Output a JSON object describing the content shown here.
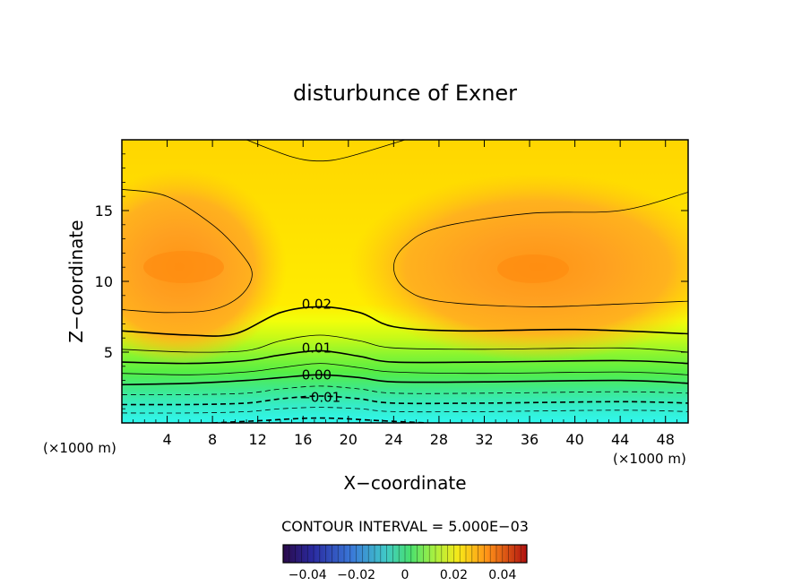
{
  "chart_data": {
    "type": "contour",
    "title": "disturbunce of Exner",
    "xlabel": "X−coordinate",
    "ylabel": "Z−coordinate",
    "x_unit_left": "(×1000 m)",
    "x_unit_right": "(×1000 m)",
    "xlim": [
      0,
      50
    ],
    "ylim": [
      0,
      20
    ],
    "x_ticks": [
      4,
      8,
      12,
      16,
      20,
      24,
      28,
      32,
      36,
      40,
      44,
      48
    ],
    "y_ticks": [
      5,
      10,
      15
    ],
    "contour_interval_text": "CONTOUR INTERVAL = 5.000E−03",
    "contour_interval": 0.005,
    "contour_labels": [
      {
        "text": "0.02",
        "x": 17.2,
        "z": 8.4
      },
      {
        "text": "0.01",
        "x": 17.2,
        "z": 5.3
      },
      {
        "text": "0.00",
        "x": 17.2,
        "z": 3.4
      },
      {
        "text": "−0.01",
        "x": 17.5,
        "z": 1.8
      }
    ],
    "contour_lines": [
      {
        "level": 0.025,
        "points": [
          [
            0,
            16.5
          ],
          [
            4,
            16
          ],
          [
            8,
            14
          ],
          [
            10.5,
            12
          ],
          [
            11.5,
            10.5
          ],
          [
            10.5,
            9
          ],
          [
            8,
            8
          ],
          [
            4,
            7.8
          ],
          [
            0,
            8
          ]
        ]
      },
      {
        "level": 0.025,
        "points": [
          [
            50,
            16.3
          ],
          [
            44,
            15
          ],
          [
            36,
            14.8
          ],
          [
            28,
            13.8
          ],
          [
            25,
            12.5
          ],
          [
            24,
            11
          ],
          [
            25,
            9.5
          ],
          [
            28,
            8.6
          ],
          [
            36,
            8.2
          ],
          [
            44,
            8.4
          ],
          [
            50,
            8.6
          ]
        ]
      },
      {
        "level": 0.025,
        "points": [
          [
            11,
            20
          ],
          [
            15,
            18.8
          ],
          [
            17.5,
            18.5
          ],
          [
            20,
            18.8
          ],
          [
            25,
            20
          ]
        ]
      },
      {
        "level": 0.02,
        "points": [
          [
            0,
            6.5
          ],
          [
            6,
            6.2
          ],
          [
            10,
            6.3
          ],
          [
            14,
            7.8
          ],
          [
            17.5,
            8.2
          ],
          [
            21,
            7.8
          ],
          [
            24,
            6.8
          ],
          [
            30,
            6.5
          ],
          [
            40,
            6.6
          ],
          [
            50,
            6.3
          ]
        ]
      },
      {
        "level": 0.015,
        "points": [
          [
            0,
            5.2
          ],
          [
            6,
            5.0
          ],
          [
            11,
            5.1
          ],
          [
            14,
            5.8
          ],
          [
            17.5,
            6.2
          ],
          [
            21,
            5.8
          ],
          [
            24,
            5.3
          ],
          [
            32,
            5.2
          ],
          [
            44,
            5.3
          ],
          [
            50,
            5.0
          ]
        ]
      },
      {
        "level": 0.01,
        "points": [
          [
            0,
            4.3
          ],
          [
            6,
            4.2
          ],
          [
            11,
            4.4
          ],
          [
            14,
            4.8
          ],
          [
            17.5,
            5.1
          ],
          [
            21,
            4.7
          ],
          [
            24,
            4.3
          ],
          [
            32,
            4.3
          ],
          [
            44,
            4.4
          ],
          [
            50,
            4.2
          ]
        ]
      },
      {
        "level": 0.005,
        "points": [
          [
            0,
            3.5
          ],
          [
            6,
            3.4
          ],
          [
            11,
            3.6
          ],
          [
            14,
            3.9
          ],
          [
            17.5,
            4.2
          ],
          [
            21,
            3.9
          ],
          [
            24,
            3.6
          ],
          [
            32,
            3.5
          ],
          [
            44,
            3.6
          ],
          [
            50,
            3.4
          ]
        ]
      },
      {
        "level": 0.0,
        "points": [
          [
            0,
            2.7
          ],
          [
            6,
            2.8
          ],
          [
            11,
            3.0
          ],
          [
            14,
            3.2
          ],
          [
            17.5,
            3.4
          ],
          [
            21,
            3.2
          ],
          [
            24,
            2.9
          ],
          [
            32,
            2.9
          ],
          [
            44,
            3.0
          ],
          [
            50,
            2.8
          ]
        ]
      },
      {
        "level": -0.005,
        "points": [
          [
            0,
            2.0
          ],
          [
            6,
            2.0
          ],
          [
            11,
            2.1
          ],
          [
            14,
            2.4
          ],
          [
            17.5,
            2.6
          ],
          [
            21,
            2.4
          ],
          [
            24,
            2.1
          ],
          [
            32,
            2.1
          ],
          [
            44,
            2.2
          ],
          [
            50,
            2.1
          ]
        ]
      },
      {
        "level": -0.01,
        "points": [
          [
            0,
            1.3
          ],
          [
            6,
            1.3
          ],
          [
            11,
            1.4
          ],
          [
            14,
            1.7
          ],
          [
            17.5,
            1.9
          ],
          [
            21,
            1.7
          ],
          [
            24,
            1.4
          ],
          [
            32,
            1.4
          ],
          [
            44,
            1.5
          ],
          [
            50,
            1.4
          ]
        ]
      },
      {
        "level": -0.015,
        "points": [
          [
            0,
            0.7
          ],
          [
            6,
            0.7
          ],
          [
            11,
            0.8
          ],
          [
            14,
            1.0
          ],
          [
            17.5,
            1.1
          ],
          [
            21,
            1.0
          ],
          [
            24,
            0.8
          ],
          [
            32,
            0.8
          ],
          [
            44,
            0.9
          ],
          [
            50,
            0.8
          ]
        ]
      },
      {
        "level": -0.02,
        "points": [
          [
            8,
            0
          ],
          [
            12,
            0.15
          ],
          [
            17.5,
            0.35
          ],
          [
            23,
            0.15
          ],
          [
            27,
            0
          ]
        ]
      }
    ],
    "colorbar": {
      "tick_labels": [
        "−0.04",
        "−0.02",
        "0",
        "0.02",
        "0.04"
      ],
      "tick_values": [
        -0.04,
        -0.02,
        0,
        0.02,
        0.04
      ],
      "range": [
        -0.05,
        0.05
      ]
    }
  },
  "colors": {
    "field_low": "#33f0e8",
    "field_mid": "#55ee44",
    "field_transition": "#ffe800",
    "field_high": "#ff9a1f",
    "background": "#ffffff"
  }
}
